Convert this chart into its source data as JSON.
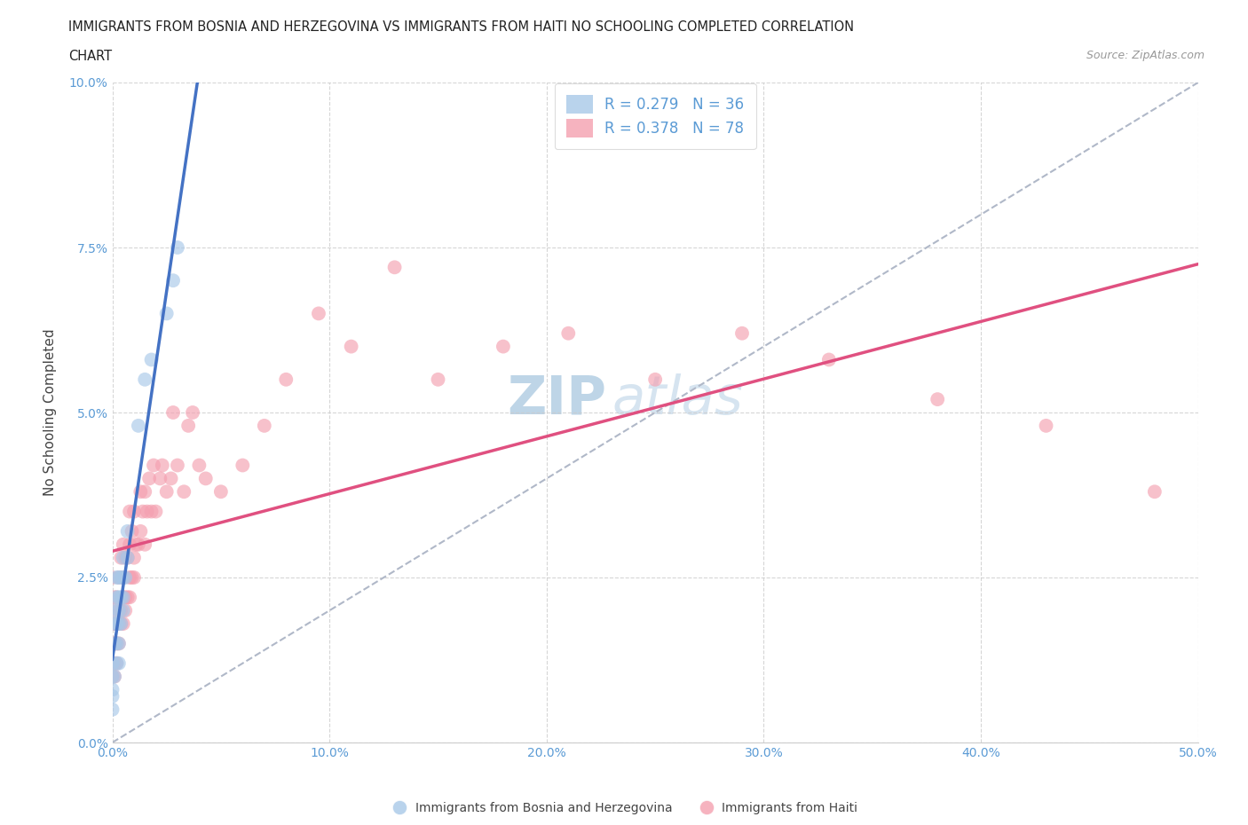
{
  "title_line1": "IMMIGRANTS FROM BOSNIA AND HERZEGOVINA VS IMMIGRANTS FROM HAITI NO SCHOOLING COMPLETED CORRELATION",
  "title_line2": "CHART",
  "source": "Source: ZipAtlas.com",
  "xlabel_ticks": [
    "0.0%",
    "10.0%",
    "20.0%",
    "30.0%",
    "40.0%",
    "50.0%"
  ],
  "ylabel_ticks": [
    "0.0%",
    "2.5%",
    "5.0%",
    "7.5%",
    "10.0%"
  ],
  "xlim": [
    0.0,
    0.5
  ],
  "ylim": [
    0.0,
    0.1
  ],
  "ylabel": "No Schooling Completed",
  "legend_label1": "Immigrants from Bosnia and Herzegovina",
  "legend_label2": "Immigrants from Haiti",
  "R1": 0.279,
  "N1": 36,
  "R2": 0.378,
  "N2": 78,
  "color1": "#a8c8e8",
  "color2": "#f4a0b0",
  "trendline1_color": "#4472c4",
  "trendline2_color": "#e05080",
  "dashed_line_color": "#b0b8c8",
  "background_color": "#ffffff",
  "grid_color": "#cccccc",
  "bosnia_x": [
    0.0,
    0.0,
    0.0,
    0.0,
    0.0,
    0.001,
    0.001,
    0.001,
    0.001,
    0.002,
    0.002,
    0.002,
    0.002,
    0.002,
    0.003,
    0.003,
    0.003,
    0.003,
    0.003,
    0.003,
    0.004,
    0.004,
    0.004,
    0.005,
    0.005,
    0.005,
    0.005,
    0.006,
    0.007,
    0.007,
    0.012,
    0.015,
    0.018,
    0.025,
    0.028,
    0.03
  ],
  "bosnia_y": [
    0.005,
    0.007,
    0.008,
    0.01,
    0.012,
    0.01,
    0.015,
    0.018,
    0.02,
    0.012,
    0.015,
    0.018,
    0.022,
    0.025,
    0.012,
    0.015,
    0.018,
    0.02,
    0.022,
    0.025,
    0.018,
    0.022,
    0.025,
    0.02,
    0.022,
    0.025,
    0.028,
    0.025,
    0.028,
    0.032,
    0.048,
    0.055,
    0.058,
    0.065,
    0.07,
    0.075
  ],
  "haiti_x": [
    0.0,
    0.0,
    0.0,
    0.0,
    0.0,
    0.001,
    0.001,
    0.001,
    0.001,
    0.001,
    0.002,
    0.002,
    0.002,
    0.002,
    0.003,
    0.003,
    0.003,
    0.003,
    0.004,
    0.004,
    0.004,
    0.005,
    0.005,
    0.005,
    0.005,
    0.006,
    0.006,
    0.006,
    0.007,
    0.007,
    0.008,
    0.008,
    0.008,
    0.008,
    0.009,
    0.009,
    0.01,
    0.01,
    0.01,
    0.011,
    0.012,
    0.013,
    0.013,
    0.014,
    0.015,
    0.015,
    0.016,
    0.017,
    0.018,
    0.019,
    0.02,
    0.022,
    0.023,
    0.025,
    0.027,
    0.028,
    0.03,
    0.033,
    0.035,
    0.037,
    0.04,
    0.043,
    0.05,
    0.06,
    0.07,
    0.08,
    0.095,
    0.11,
    0.13,
    0.15,
    0.18,
    0.21,
    0.25,
    0.29,
    0.33,
    0.38,
    0.43,
    0.48
  ],
  "haiti_y": [
    0.01,
    0.015,
    0.018,
    0.02,
    0.025,
    0.01,
    0.012,
    0.015,
    0.018,
    0.022,
    0.012,
    0.015,
    0.018,
    0.022,
    0.015,
    0.018,
    0.02,
    0.025,
    0.018,
    0.02,
    0.028,
    0.018,
    0.022,
    0.025,
    0.03,
    0.02,
    0.022,
    0.028,
    0.022,
    0.028,
    0.022,
    0.025,
    0.03,
    0.035,
    0.025,
    0.032,
    0.025,
    0.028,
    0.035,
    0.03,
    0.03,
    0.032,
    0.038,
    0.035,
    0.03,
    0.038,
    0.035,
    0.04,
    0.035,
    0.042,
    0.035,
    0.04,
    0.042,
    0.038,
    0.04,
    0.05,
    0.042,
    0.038,
    0.048,
    0.05,
    0.042,
    0.04,
    0.038,
    0.042,
    0.048,
    0.055,
    0.065,
    0.06,
    0.072,
    0.055,
    0.06,
    0.062,
    0.055,
    0.062,
    0.058,
    0.052,
    0.048,
    0.038
  ],
  "watermark_zip": "ZIP",
  "watermark_atlas": "atlas"
}
